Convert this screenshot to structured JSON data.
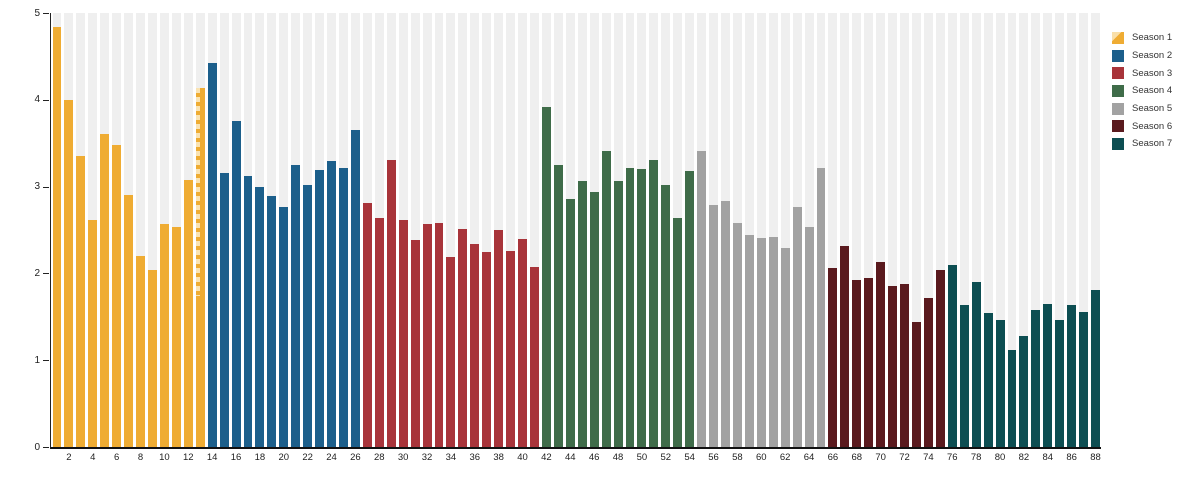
{
  "chart_data": {
    "type": "bar",
    "title": "",
    "xlabel": "",
    "ylabel": "",
    "ylim": [
      0,
      5
    ],
    "y_ticks": [
      "0",
      "1",
      "2",
      "3",
      "4",
      "5"
    ],
    "x_tick_labels": [
      "2",
      "4",
      "6",
      "8",
      "10",
      "12",
      "14",
      "16",
      "18",
      "20",
      "22",
      "24",
      "26",
      "28",
      "30",
      "32",
      "34",
      "36",
      "38",
      "40",
      "42",
      "44",
      "46",
      "48",
      "50",
      "52",
      "54",
      "56",
      "58",
      "60",
      "62",
      "64",
      "66",
      "68",
      "70",
      "72",
      "74",
      "76",
      "80",
      "82",
      "84",
      "86",
      "88"
    ],
    "x_tick_step": 2,
    "grid": "vertical-stripes",
    "legend_position": "top-right",
    "background_stripe_color": "#efefef",
    "series": [
      {
        "name": "Season 1",
        "color": "#efac33",
        "first_episode": 1,
        "values": [
          4.84,
          4.0,
          3.35,
          2.62,
          3.61,
          3.48,
          2.9,
          2.2,
          2.04,
          2.57,
          2.53,
          3.08,
          4.14
        ]
      },
      {
        "name": "Season 2",
        "color": "#1c5f8b",
        "first_episode": 14,
        "values": [
          4.42,
          3.16,
          3.76,
          3.12,
          2.99,
          2.89,
          2.76,
          3.25,
          3.02,
          3.19,
          3.3,
          3.21,
          3.65
        ]
      },
      {
        "name": "Season 3",
        "color": "#a8343a",
        "first_episode": 27,
        "values": [
          2.81,
          2.64,
          3.31,
          2.62,
          2.39,
          2.57,
          2.58,
          2.19,
          2.51,
          2.34,
          2.25,
          2.5,
          2.26,
          2.4,
          2.07
        ]
      },
      {
        "name": "Season 4",
        "color": "#3f6c49",
        "first_episode": 42,
        "values": [
          3.92,
          3.25,
          2.86,
          3.07,
          2.94,
          3.41,
          3.06,
          3.21,
          3.2,
          3.31,
          3.02,
          2.64,
          3.18
        ]
      },
      {
        "name": "Season 5",
        "color": "#a2a2a2",
        "first_episode": 55,
        "values": [
          3.41,
          2.79,
          2.83,
          2.58,
          2.44,
          2.41,
          2.42,
          2.29,
          2.76,
          2.54,
          3.21
        ]
      },
      {
        "name": "Season 6",
        "color": "#5a1a1e",
        "first_episode": 66,
        "values": [
          2.06,
          2.32,
          1.92,
          1.95,
          2.13,
          1.85,
          1.88,
          1.44,
          1.72,
          2.04
        ]
      },
      {
        "name": "Season 7",
        "color": "#0d4e52",
        "first_episode": 76,
        "values": [
          2.1,
          1.64,
          1.9,
          1.54,
          1.46,
          1.12,
          1.28,
          1.58,
          1.65,
          1.46,
          1.64,
          1.56,
          1.81
        ]
      }
    ],
    "special_bars": [
      {
        "episode": 13,
        "style": "hatched",
        "hatch_color": "#fae3b2"
      }
    ]
  }
}
